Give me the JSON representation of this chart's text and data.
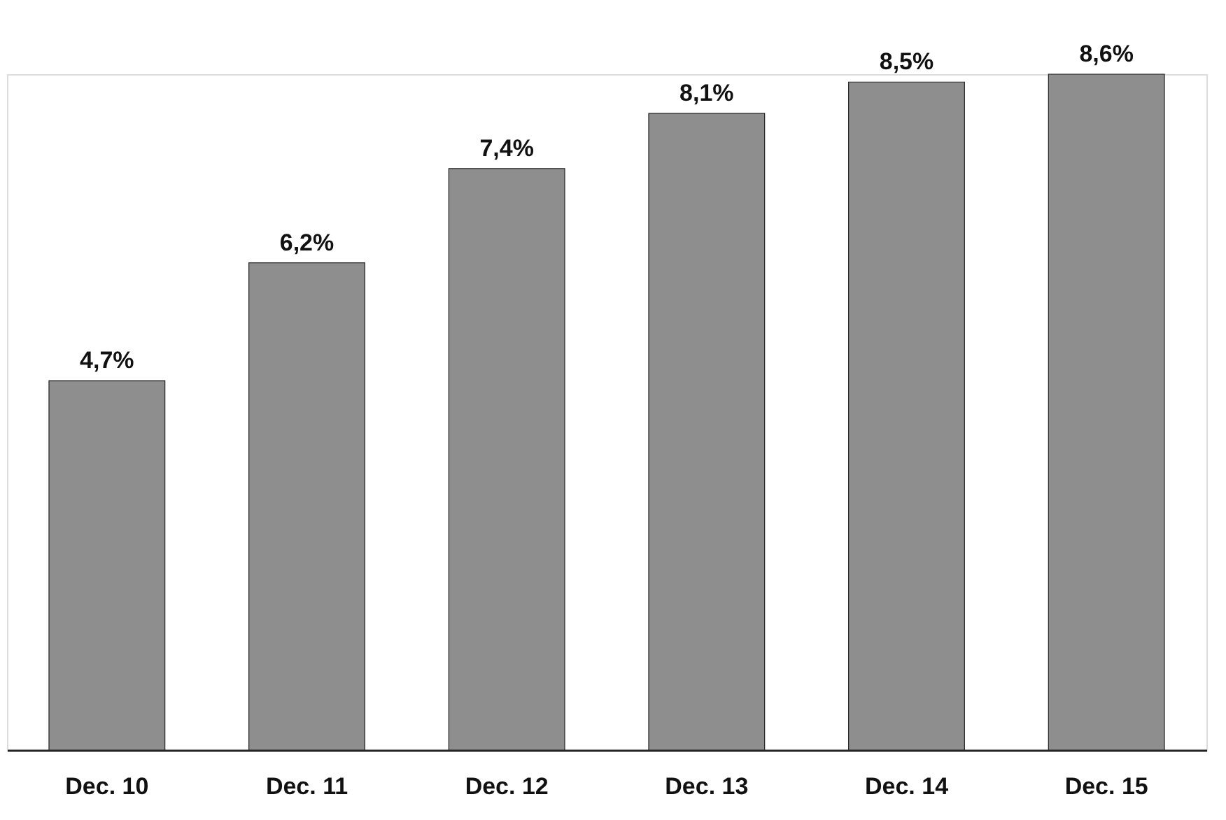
{
  "chart_data": {
    "type": "bar",
    "categories": [
      "Dec. 10",
      "Dec. 11",
      "Dec. 12",
      "Dec. 13",
      "Dec. 14",
      "Dec. 15"
    ],
    "values": [
      4.7,
      6.2,
      7.4,
      8.1,
      8.5,
      8.6
    ],
    "value_labels": [
      "4,7%",
      "6,2%",
      "7,4%",
      "8,1%",
      "8,5%",
      "8,6%"
    ],
    "color": "#8e8e8e",
    "grid": false
  }
}
